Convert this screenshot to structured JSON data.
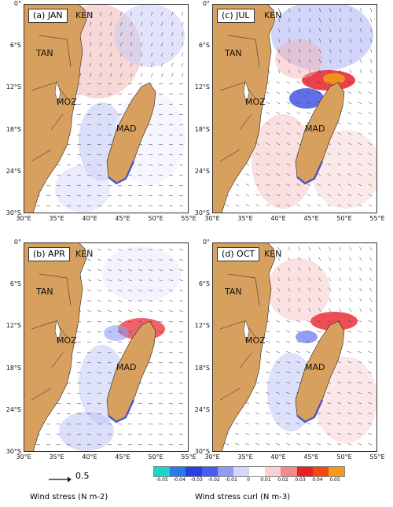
{
  "colors": {
    "land": "#d8a05e",
    "sea": "#ffffff",
    "positive": "#e8202a",
    "negative": "#2a3fe0"
  },
  "panels": [
    {
      "label": "(a) JAN",
      "countries": {
        "ken": "KEN",
        "tan": "TAN",
        "moz": "MOZ",
        "mad": "MAD"
      },
      "pattern": "jan"
    },
    {
      "label": "(c) JUL",
      "countries": {
        "ken": "KEN",
        "tan": "TAN",
        "moz": "MOZ",
        "mad": "MAD"
      },
      "pattern": "jul"
    },
    {
      "label": "(b) APR",
      "countries": {
        "ken": "KEN",
        "tan": "TAN",
        "moz": "MOZ",
        "mad": "MAD"
      },
      "pattern": "apr"
    },
    {
      "label": "(d) OCT",
      "countries": {
        "ken": "KEN",
        "tan": "TAN",
        "moz": "MOZ",
        "mad": "MAD"
      },
      "pattern": "oct"
    }
  ],
  "y_ticks": [
    "0°",
    "6°S",
    "12°S",
    "18°S",
    "24°S",
    "30°S"
  ],
  "x_ticks": [
    "30°E",
    "35°E",
    "40°E",
    "45°E",
    "50°E",
    "55°E"
  ],
  "legend": {
    "scale_value": "0.5",
    "wind_stress_label": "Wind stress (N m-2)",
    "curl_label": "Wind stress curl (N m-3)",
    "colorbar_ticks": [
      "-0.05",
      "-0.04",
      "-0.03",
      "-0.02",
      "-0.01",
      "0",
      "0.01",
      "0.02",
      "0.03",
      "0.04",
      "0.05"
    ],
    "colorbar_colors": [
      "#19d6c9",
      "#2a7be8",
      "#2a3fe0",
      "#4a5cf0",
      "#8f9cf5",
      "#d4d8fb",
      "#ffffff",
      "#fbd0d0",
      "#f38a8a",
      "#e8202a",
      "#f04a10",
      "#f59a1a"
    ]
  }
}
